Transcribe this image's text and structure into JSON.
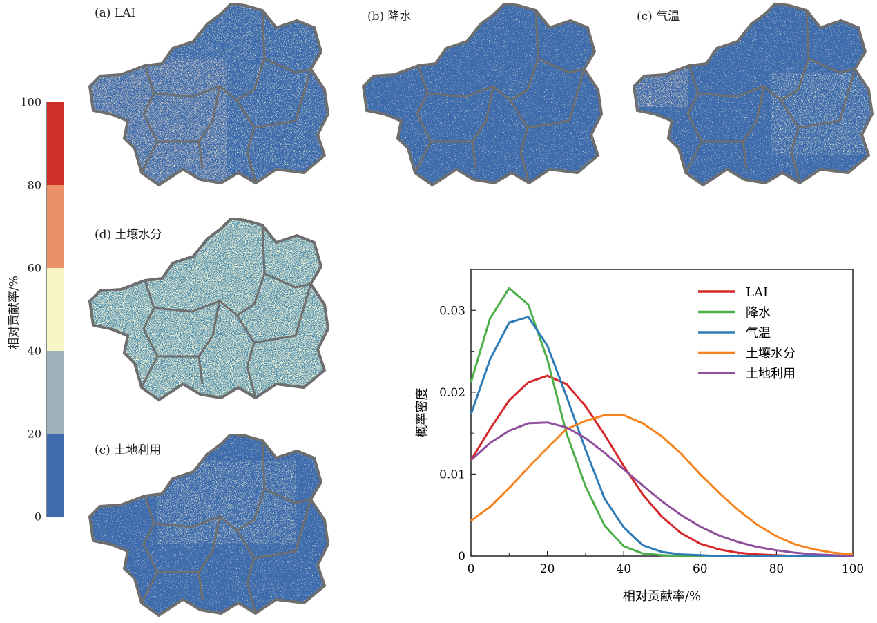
{
  "colorbar": {
    "title": "相对贡献率/%",
    "ticks": [
      "0",
      "20",
      "40",
      "60",
      "80",
      "100"
    ],
    "bins": [
      {
        "from": 0,
        "to": 20,
        "color": "#3d6bab"
      },
      {
        "from": 20,
        "to": 40,
        "color": "#9eb0b9"
      },
      {
        "from": 40,
        "to": 60,
        "color": "#f6f5c3"
      },
      {
        "from": 60,
        "to": 80,
        "color": "#eb9168"
      },
      {
        "from": 80,
        "to": 100,
        "color": "#cf2e2a"
      }
    ]
  },
  "maps": [
    {
      "label": "(a) LAI"
    },
    {
      "label": "(b) 降水"
    },
    {
      "label": "(c) 气温"
    },
    {
      "label": "(d) 土壤水分"
    },
    {
      "label": "(c) 土地利用"
    }
  ],
  "chart_data": {
    "type": "line",
    "title": "",
    "xlabel": "相对贡献率/%",
    "ylabel": "概率密度",
    "xlim": [
      0,
      100
    ],
    "ylim": [
      0,
      0.035
    ],
    "xticks": [
      "0",
      "20",
      "40",
      "60",
      "80",
      "100"
    ],
    "yticks": [
      "0",
      "0.01",
      "0.02",
      "0.03"
    ],
    "legend_position": "top-right",
    "x": [
      0,
      5,
      10,
      15,
      20,
      25,
      30,
      35,
      40,
      45,
      50,
      55,
      60,
      65,
      70,
      75,
      80,
      85,
      90,
      95,
      100
    ],
    "series": [
      {
        "name": "LAI",
        "color": "#d62728",
        "values": [
          0.0117,
          0.0155,
          0.019,
          0.0212,
          0.022,
          0.021,
          0.0183,
          0.0148,
          0.011,
          0.0075,
          0.0048,
          0.0028,
          0.0015,
          0.0008,
          0.0004,
          0.0002,
          0.0001,
          0,
          0,
          0,
          0
        ]
      },
      {
        "name": "降水",
        "color": "#4daf4a",
        "values": [
          0.0212,
          0.029,
          0.0327,
          0.0307,
          0.024,
          0.015,
          0.0085,
          0.0037,
          0.0012,
          0.0003,
          0.0001,
          0,
          0,
          0,
          0,
          0,
          0,
          0,
          0,
          0,
          0
        ]
      },
      {
        "name": "气温",
        "color": "#2f7bb6",
        "values": [
          0.0173,
          0.024,
          0.0285,
          0.0292,
          0.0257,
          0.0195,
          0.013,
          0.007,
          0.0035,
          0.0013,
          0.0005,
          0.0002,
          0.0001,
          0,
          0,
          0,
          0,
          0,
          0,
          0,
          0
        ]
      },
      {
        "name": "土壤水分",
        "color": "#f5841f",
        "values": [
          0.0043,
          0.006,
          0.0083,
          0.0108,
          0.0132,
          0.0155,
          0.0165,
          0.0172,
          0.0172,
          0.0162,
          0.0146,
          0.0125,
          0.01,
          0.0077,
          0.0056,
          0.0038,
          0.0024,
          0.0014,
          0.0008,
          0.0004,
          0.0002
        ]
      },
      {
        "name": "土地利用",
        "color": "#8e4f9c",
        "values": [
          0.0117,
          0.0138,
          0.0153,
          0.0162,
          0.0163,
          0.0157,
          0.0144,
          0.0126,
          0.0106,
          0.0086,
          0.0067,
          0.005,
          0.0036,
          0.0025,
          0.0017,
          0.0011,
          0.0007,
          0.0004,
          0.0002,
          0.0001,
          0
        ]
      }
    ]
  }
}
